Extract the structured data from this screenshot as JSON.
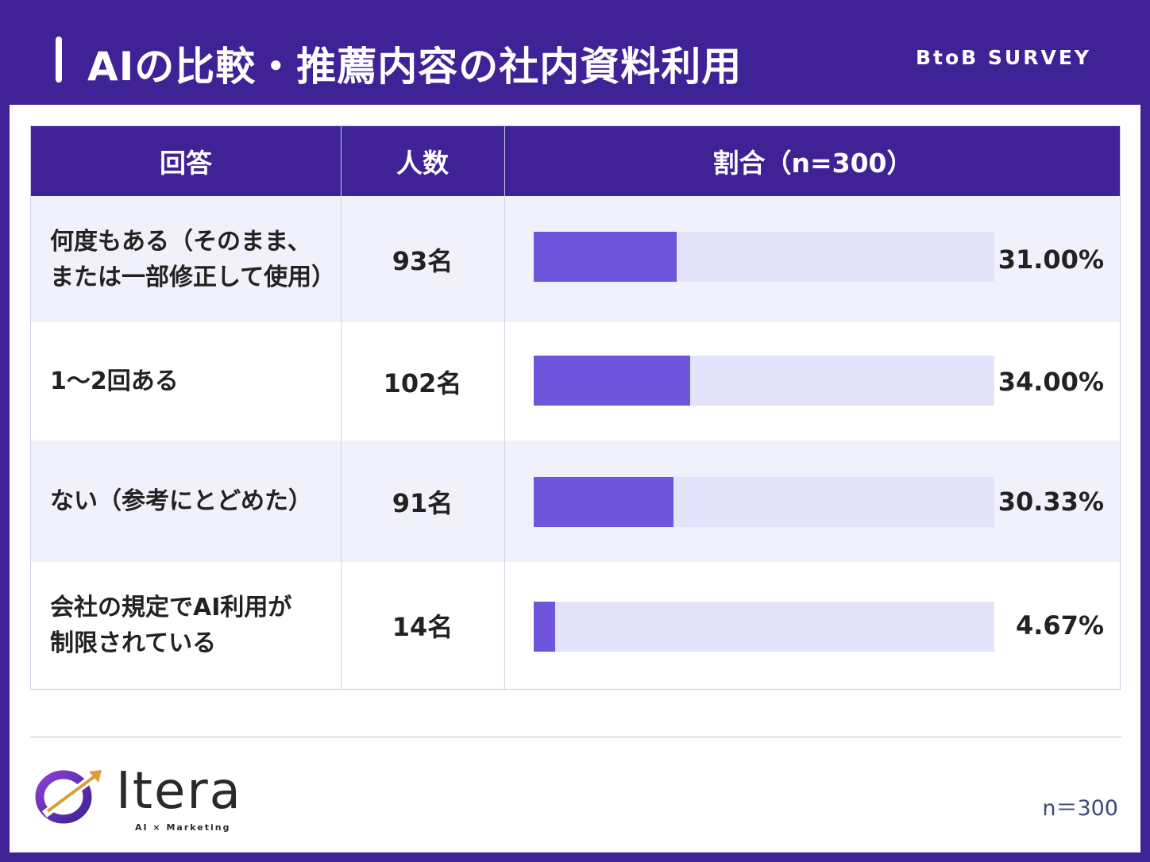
{
  "header": {
    "title": "AIの比較・推薦内容の社内資料利用",
    "tag": "BtoB SURVEY"
  },
  "table": {
    "columns": [
      "回答",
      "人数",
      "割合（n=300）"
    ]
  },
  "chart_data": {
    "type": "bar",
    "categories": [
      "何度もある（そのまま、\nまたは一部修正して使用）",
      "1〜2回ある",
      "ない（参考にとどめた）",
      "会社の規定でAI利用が\n制限されている"
    ],
    "counts": [
      "93名",
      "102名",
      "91名",
      "14名"
    ],
    "values": [
      31.0,
      34.0,
      30.33,
      4.67
    ],
    "value_labels": [
      "31.00%",
      "34.00%",
      "30.33%",
      "4.67%"
    ],
    "xlim": [
      0,
      100
    ],
    "bar_color": "#6f55dc",
    "track_color": "#e3e3fb"
  },
  "footer": {
    "logo_text": "Itera",
    "logo_sub": "AI × Marketing",
    "n_note": "n＝300"
  },
  "colors": {
    "brand": "#3f2296",
    "row_alt": "#f1f1fb"
  }
}
